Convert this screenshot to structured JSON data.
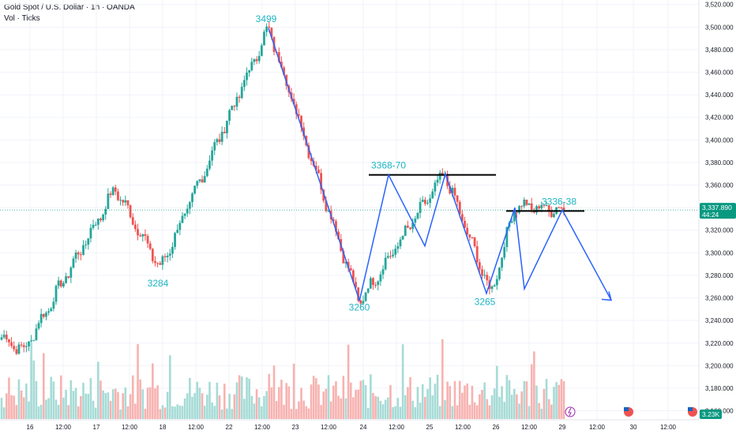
{
  "header": {
    "title": "Gold Spot / U.S. Dollar · 1h · OANDA",
    "volume_label": "Vol · Ticks"
  },
  "colors": {
    "up": "#26a69a",
    "down": "#ef5350",
    "vol_up": "#a6dbd6",
    "vol_down": "#f7b2b0",
    "drawing": "#2962ff",
    "annotation": "#1fb5c3",
    "level_line": "#000000",
    "price_badge": "#089981"
  },
  "chart_data": {
    "type": "candlestick",
    "title": "Gold Spot / U.S. Dollar · 1h · OANDA",
    "y_ticks": [
      "3,160.000",
      "3,180.000",
      "3,200.000",
      "3,220.000",
      "3,240.000",
      "3,260.000",
      "3,280.000",
      "3,300.000",
      "3,320.000",
      "3,340.000",
      "3,360.000",
      "3,380.000",
      "3,400.000",
      "3,420.000",
      "3,440.000",
      "3,460.000",
      "3,480.000",
      "3,500.000",
      "3,520.000"
    ],
    "y_tick_values": [
      3160,
      3180,
      3200,
      3220,
      3240,
      3260,
      3280,
      3300,
      3320,
      3340,
      3360,
      3380,
      3400,
      3420,
      3440,
      3460,
      3480,
      3500,
      3520
    ],
    "ylim": [
      3152,
      3524
    ],
    "x_ticks": [
      "16",
      "12:00",
      "17",
      "12:00",
      "18",
      "12:00",
      "22",
      "12:00",
      "23",
      "12:00",
      "24",
      "12:00",
      "25",
      "12:00",
      "26",
      "12:00",
      "29",
      "12:00",
      "30",
      "12:00"
    ],
    "current_price": "3,337.890",
    "countdown": "44:24",
    "current_price_value": 3337.89,
    "volume_badge": "3.23K",
    "annotations": [
      {
        "text": "3499",
        "price": 3499
      },
      {
        "text": "3284",
        "price": 3284
      },
      {
        "text": "3260",
        "price": 3260
      },
      {
        "text": "3368-70",
        "price": 3369
      },
      {
        "text": "3265",
        "price": 3265
      },
      {
        "text": "3336-38",
        "price": 3337
      }
    ],
    "levels": [
      {
        "label": "3368-70",
        "value": 3369
      },
      {
        "label": "3336-38",
        "value": 3337
      }
    ],
    "key_points": [
      {
        "label": "start",
        "price": 3226
      },
      {
        "label": "low",
        "price": 3213
      },
      {
        "label": "high",
        "price": 3357
      },
      {
        "label": "low",
        "price": 3286
      },
      {
        "label": "peak",
        "price": 3499
      },
      {
        "label": "bottom",
        "price": 3256
      },
      {
        "label": "top",
        "price": 3370
      },
      {
        "label": "low",
        "price": 3263
      },
      {
        "label": "high",
        "price": 3342
      },
      {
        "label": "last",
        "price": 3337.89
      }
    ],
    "projection_path": [
      3257,
      3369,
      3306,
      3370,
      3264,
      3340,
      3268,
      3338,
      3258
    ],
    "candle_count": 228
  }
}
